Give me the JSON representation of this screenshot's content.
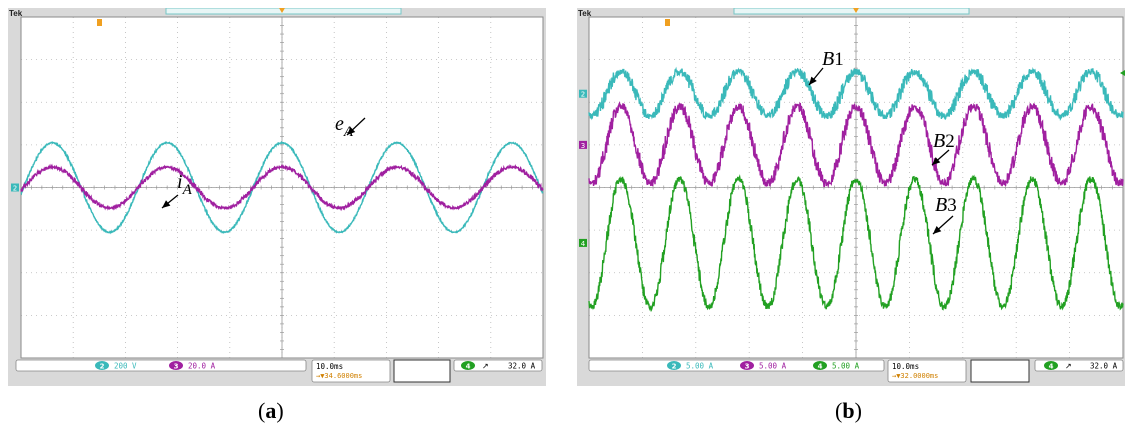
{
  "brand": "Tek",
  "panels": [
    {
      "caption_open": "(",
      "caption_letter": "a",
      "caption_close": ")",
      "readouts": {
        "ch2_scale": "200 V",
        "ch3_scale": "20.0 A",
        "timebase": "10.0ms",
        "delay": "→▼34.6000ms",
        "trigger_level": "32.0 A"
      },
      "channel_markers": [
        "2"
      ],
      "chart_data": {
        "type": "line",
        "title": "",
        "xlabel": "",
        "ylabel": "",
        "grid": true,
        "divisions": {
          "x": 10,
          "y": 8
        },
        "xlim": [
          -50,
          50
        ],
        "x_unit": "ms",
        "series": [
          {
            "name": "e_A",
            "label_main": "e",
            "label_sub": "A",
            "color": "#3ab9ba",
            "waveform": "sine",
            "amplitude_div": 1.05,
            "offset_div": 0,
            "period_ms": 22,
            "phase_deg": 0,
            "noise": 0.01
          },
          {
            "name": "i_A",
            "label_main": "i",
            "label_sub": "A",
            "color": "#a020a0",
            "waveform": "sine",
            "amplitude_div": 0.48,
            "offset_div": 0,
            "period_ms": 22,
            "phase_deg": 0,
            "noise": 0.02
          }
        ]
      }
    },
    {
      "caption_open": "(",
      "caption_letter": "b",
      "caption_close": ")",
      "readouts": {
        "ch2_scale": "5.00 A",
        "ch3_scale": "5.00 A",
        "ch4_scale": "5.00 A",
        "timebase": "10.0ms",
        "delay": "→▼32.0000ms",
        "trigger_level": "32.0 A"
      },
      "channel_markers": [
        "2",
        "3",
        "4"
      ],
      "chart_data": {
        "type": "line",
        "title": "",
        "xlabel": "",
        "ylabel": "",
        "grid": true,
        "divisions": {
          "x": 10,
          "y": 8
        },
        "xlim": [
          -50,
          50
        ],
        "x_unit": "ms",
        "series": [
          {
            "name": "B1",
            "label_main": "B",
            "label_sub": "1",
            "color": "#3ab9ba",
            "waveform": "sine",
            "amplitude_div": 0.52,
            "offset_div": 2.2,
            "period_ms": 11,
            "phase_deg": 0,
            "noise": 0.06
          },
          {
            "name": "B2",
            "label_main": "B",
            "label_sub": "2",
            "color": "#a020a0",
            "waveform": "sine",
            "amplitude_div": 0.9,
            "offset_div": 1.0,
            "period_ms": 11,
            "phase_deg": 0,
            "noise": 0.07
          },
          {
            "name": "B3",
            "label_main": "B",
            "label_sub": "3",
            "color": "#22a022",
            "waveform": "sine",
            "amplitude_div": 1.5,
            "offset_div": -1.3,
            "period_ms": 11,
            "phase_deg": 0,
            "noise": 0.06
          }
        ]
      }
    }
  ]
}
